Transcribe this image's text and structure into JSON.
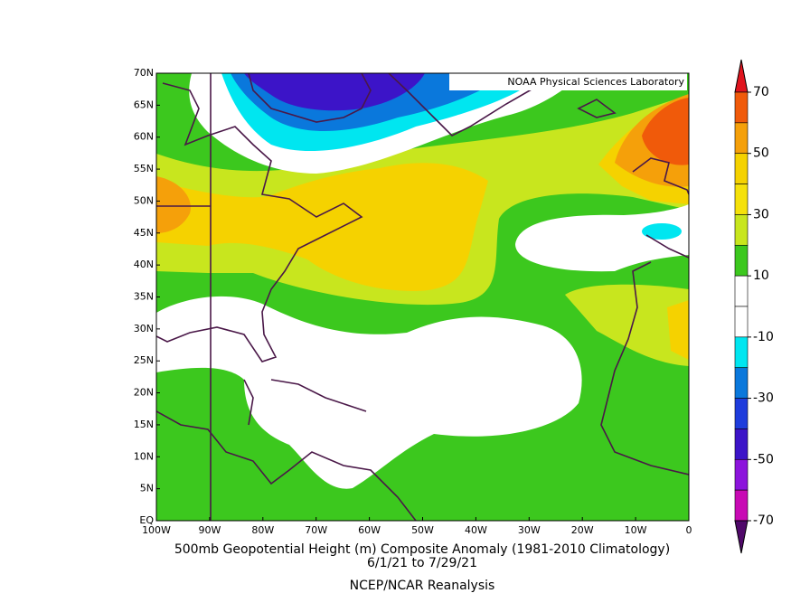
{
  "map": {
    "banner": "NOAA Physical Sciences Laboratory",
    "lat_labels": [
      "EQ",
      "5N",
      "10N",
      "15N",
      "20N",
      "25N",
      "30N",
      "35N",
      "40N",
      "45N",
      "50N",
      "55N",
      "60N",
      "65N",
      "70N"
    ],
    "lon_labels": [
      "100W",
      "90W",
      "80W",
      "70W",
      "60W",
      "50W",
      "40W",
      "30W",
      "20W",
      "10W",
      "0"
    ],
    "caption": {
      "title": "500mb Geopotential Height (m) Composite Anomaly (1981-2010 Climatology)",
      "dates": "6/1/21  to 7/29/21",
      "source": "NCEP/NCAR Reanalysis"
    },
    "colorbar": {
      "labels": [
        70,
        50,
        30,
        10,
        -10,
        -30,
        -50,
        -70
      ],
      "colors": [
        "#e0141e",
        "#f05a0a",
        "#f5a00a",
        "#f5d200",
        "#f5e10a",
        "#c8e61e",
        "#3cc81e",
        "#ffffff",
        "#ffffff",
        "#00e6f0",
        "#0a78dc",
        "#1e3cdc",
        "#3c14c8",
        "#8c14dc",
        "#c80ab4",
        "#50096a"
      ]
    }
  }
}
